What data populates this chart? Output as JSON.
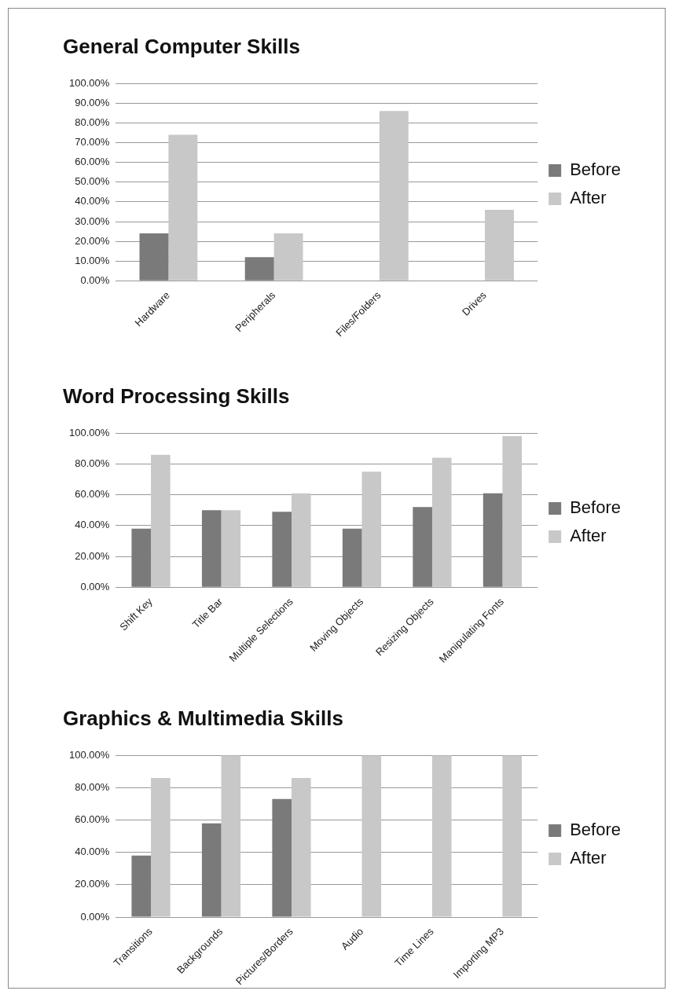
{
  "chart_data": [
    {
      "type": "bar",
      "title": "General Computer Skills",
      "categories": [
        "Hardware",
        "Peripherals",
        "Files/Folders",
        "Drives"
      ],
      "series": [
        {
          "name": "Before",
          "color": "#7a7a7a",
          "values": [
            24,
            12,
            0,
            0
          ]
        },
        {
          "name": "After",
          "color": "#c8c8c8",
          "values": [
            74,
            24,
            86,
            36
          ]
        }
      ],
      "ylim": [
        0,
        100
      ],
      "yticks": [
        {
          "value": 0,
          "label": "0.00%"
        },
        {
          "value": 10,
          "label": "10.00%"
        },
        {
          "value": 20,
          "label": "20.00%"
        },
        {
          "value": 30,
          "label": "30.00%"
        },
        {
          "value": 40,
          "label": "40.00%"
        },
        {
          "value": 50,
          "label": "50.00%"
        },
        {
          "value": 60,
          "label": "60.00%"
        },
        {
          "value": 70,
          "label": "70.00%"
        },
        {
          "value": 80,
          "label": "80.00%"
        },
        {
          "value": 90,
          "label": "90.00%"
        },
        {
          "value": 100,
          "label": "100.00%"
        }
      ],
      "grid": "y",
      "legend": "right"
    },
    {
      "type": "bar",
      "title": "Word Processing Skills",
      "categories": [
        "Shift Key",
        "Title Bar",
        "Multiple Selections",
        "Moving Objects",
        "Resizing Objects",
        "Manipulating Fonts"
      ],
      "series": [
        {
          "name": "Before",
          "color": "#7a7a7a",
          "values": [
            38,
            50,
            49,
            38,
            52,
            61
          ]
        },
        {
          "name": "After",
          "color": "#c8c8c8",
          "values": [
            86,
            50,
            61,
            75,
            84,
            98
          ]
        }
      ],
      "ylim": [
        0,
        100
      ],
      "yticks": [
        {
          "value": 0,
          "label": "0.00%"
        },
        {
          "value": 20,
          "label": "20.00%"
        },
        {
          "value": 40,
          "label": "40.00%"
        },
        {
          "value": 60,
          "label": "60.00%"
        },
        {
          "value": 80,
          "label": "80.00%"
        },
        {
          "value": 100,
          "label": "100.00%"
        }
      ],
      "grid": "y",
      "legend": "right"
    },
    {
      "type": "bar",
      "title": "Graphics & Multimedia Skills",
      "categories": [
        "Transitions",
        "Backgrounds",
        "Pictures/Borders",
        "Audio",
        "Time Lines",
        "Importing MP3"
      ],
      "series": [
        {
          "name": "Before",
          "color": "#7a7a7a",
          "values": [
            38,
            58,
            73,
            0,
            0,
            0
          ]
        },
        {
          "name": "After",
          "color": "#c8c8c8",
          "values": [
            86,
            100,
            86,
            100,
            100,
            100
          ]
        }
      ],
      "ylim": [
        0,
        100
      ],
      "yticks": [
        {
          "value": 0,
          "label": "0.00%"
        },
        {
          "value": 20,
          "label": "20.00%"
        },
        {
          "value": 40,
          "label": "40.00%"
        },
        {
          "value": 60,
          "label": "60.00%"
        },
        {
          "value": 80,
          "label": "80.00%"
        },
        {
          "value": 100,
          "label": "100.00%"
        }
      ],
      "grid": "y",
      "legend": "right"
    }
  ]
}
